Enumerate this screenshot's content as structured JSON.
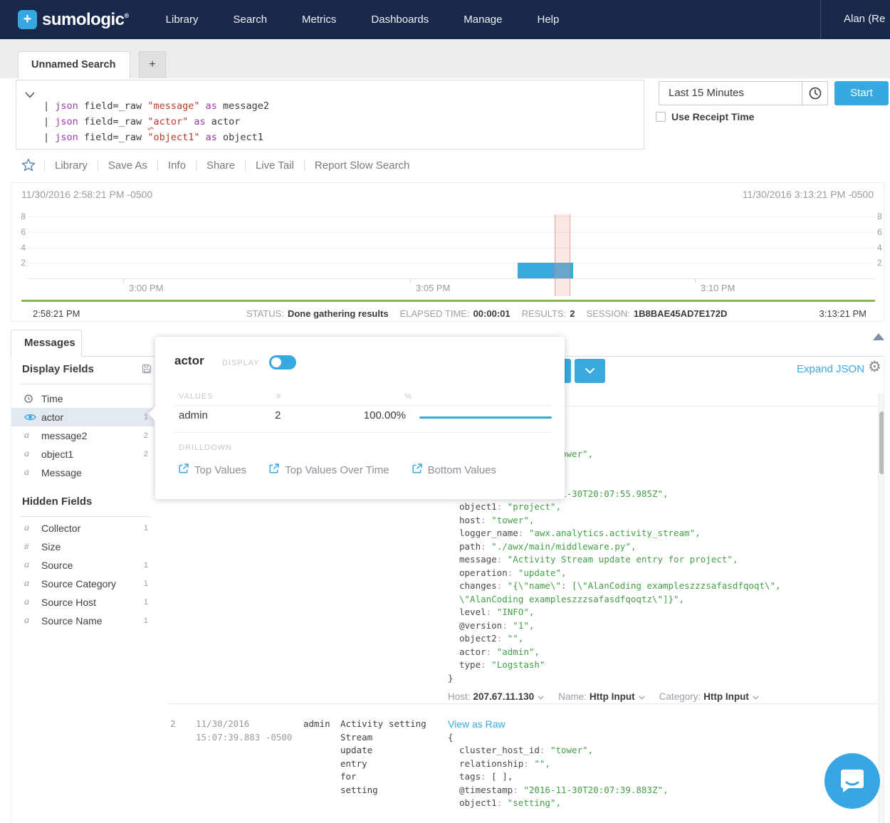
{
  "nav": {
    "brand": "sumologic",
    "brand_plus": "+",
    "registered": "®",
    "items": [
      "Library",
      "Search",
      "Metrics",
      "Dashboards",
      "Manage",
      "Help"
    ],
    "user": "Alan (Re"
  },
  "tabs": {
    "active": "Unnamed Search",
    "new_tab": "+"
  },
  "query": {
    "lines": [
      {
        "pipe": "| ",
        "cmd": "json ",
        "field": "field=_raw ",
        "str": "\"message\"",
        "kw": " as ",
        "alias": "message2",
        "squiggle": false
      },
      {
        "pipe": "| ",
        "cmd": "json ",
        "field": "field=_raw ",
        "str": "\"actor\"",
        "kw": " as ",
        "alias": "actor",
        "squiggle": true
      },
      {
        "pipe": "| ",
        "cmd": "json ",
        "field": "field=_raw ",
        "str": "\"object1\"",
        "kw": " as ",
        "alias": "object1",
        "squiggle": false
      }
    ],
    "time_range": "Last 15 Minutes",
    "start_label": "Start",
    "receipt_label": "Use Receipt Time"
  },
  "toolbar": {
    "items": [
      "Library",
      "Save As",
      "Info",
      "Share",
      "Live Tail",
      "Report Slow Search"
    ]
  },
  "histogram": {
    "start_label": "11/30/2016 2:58:21 PM -0500",
    "end_label": "11/30/2016 3:13:21 PM -0500",
    "start_time": "2:58:21 PM",
    "end_time": "3:13:21 PM",
    "y_ticks": [
      "8",
      "6",
      "4",
      "2"
    ],
    "x_ticks": [
      "3:00 PM",
      "3:05 PM",
      "3:10 PM"
    ],
    "bar": {
      "value": 2,
      "color": "#3aa9dc"
    },
    "status": [
      {
        "label": "STATUS:",
        "value": "Done gathering results"
      },
      {
        "label": "ELAPSED TIME:",
        "value": "00:00:01"
      },
      {
        "label": "RESULTS:",
        "value": "2"
      },
      {
        "label": "SESSION:",
        "value": "1B8BAE45AD7E172D"
      }
    ]
  },
  "messages": {
    "tab": "Messages",
    "expand_json": "Expand JSON",
    "display_fields": {
      "title": "Display Fields",
      "items": [
        {
          "icon": "clock",
          "label": "Time",
          "count": "",
          "selected": false
        },
        {
          "icon": "eye",
          "label": "actor",
          "count": "1",
          "selected": true
        },
        {
          "icon": "a",
          "label": "message2",
          "count": "2",
          "selected": false
        },
        {
          "icon": "a",
          "label": "object1",
          "count": "2",
          "selected": false
        },
        {
          "icon": "a",
          "label": "Message",
          "count": "",
          "selected": false
        }
      ]
    },
    "hidden_fields": {
      "title": "Hidden Fields",
      "items": [
        {
          "icon": "a",
          "label": "Collector",
          "count": "1",
          "selected": false
        },
        {
          "icon": "hash",
          "label": "Size",
          "count": "",
          "selected": false
        },
        {
          "icon": "a",
          "label": "Source",
          "count": "1",
          "selected": false
        },
        {
          "icon": "a",
          "label": "Source Category",
          "count": "1",
          "selected": false
        },
        {
          "icon": "a",
          "label": "Source Host",
          "count": "1",
          "selected": false
        },
        {
          "icon": "a",
          "label": "Source Name",
          "count": "1",
          "selected": false
        }
      ]
    },
    "rows": [
      {
        "view_raw": "View as Raw",
        "json": [
          {
            "k": "",
            "v": "{",
            "t": "brace"
          },
          {
            "k": "cluster_host_id",
            "v": "\"tower\",",
            "t": "str"
          },
          {
            "k": "relationship",
            "v": "\"\",",
            "t": "str"
          },
          {
            "k": "tags",
            "v": "[ ],",
            "t": "plain"
          },
          {
            "k": "@timestamp",
            "v": "\"2016-11-30T20:07:55.985Z\",",
            "t": "str"
          },
          {
            "k": "object1",
            "v": "\"project\",",
            "t": "str"
          },
          {
            "k": "host",
            "v": "\"tower\",",
            "t": "str"
          },
          {
            "k": "logger_name",
            "v": "\"awx.analytics.activity_stream\",",
            "t": "str"
          },
          {
            "k": "path",
            "v": "\"./awx/main/middleware.py\",",
            "t": "str"
          },
          {
            "k": "message",
            "v": "\"Activity Stream update entry for project\",",
            "t": "str"
          },
          {
            "k": "operation",
            "v": "\"update\",",
            "t": "str"
          },
          {
            "k": "changes",
            "v": "\"{\\\"name\\\": [\\\"AlanCoding exampleszzzsafasdfqoqt\\\",",
            "t": "str"
          },
          {
            "k": "",
            "v": "\\\"AlanCoding exampleszzzsafasdfqoqtz\\\"]}\",",
            "t": "str"
          },
          {
            "k": "level",
            "v": "\"INFO\",",
            "t": "str"
          },
          {
            "k": "@version",
            "v": "\"1\",",
            "t": "str"
          },
          {
            "k": "object2",
            "v": "\"\",",
            "t": "str"
          },
          {
            "k": "actor",
            "v": "\"admin\",",
            "t": "str"
          },
          {
            "k": "type",
            "v": "\"Logstash\"",
            "t": "str"
          },
          {
            "k": "",
            "v": "}",
            "t": "brace"
          }
        ],
        "footer": [
          {
            "label": "Host:",
            "value": "207.67.11.130"
          },
          {
            "label": "Name:",
            "value": "Http Input"
          },
          {
            "label": "Category:",
            "value": "Http Input"
          }
        ]
      },
      {
        "index": "2",
        "time": [
          "11/30/2016",
          "15:07:39.883 -0500"
        ],
        "actor": "admin",
        "message2": [
          "Activity",
          "Stream",
          "update",
          "entry",
          "for",
          "setting"
        ],
        "object1": "setting",
        "view_raw": "View as Raw",
        "json": [
          {
            "k": "",
            "v": "{",
            "t": "brace"
          },
          {
            "k": "cluster_host_id",
            "v": "\"tower\",",
            "t": "str"
          },
          {
            "k": "relationship",
            "v": "\"\",",
            "t": "str"
          },
          {
            "k": "tags",
            "v": "[ ],",
            "t": "plain"
          },
          {
            "k": "@timestamp",
            "v": "\"2016-11-30T20:07:39.883Z\",",
            "t": "str"
          },
          {
            "k": "object1",
            "v": "\"setting\",",
            "t": "str"
          }
        ]
      }
    ]
  },
  "popover": {
    "title": "actor",
    "display_label": "DISPLAY",
    "values_header": {
      "values": "VALUES",
      "count": "#",
      "pct": "%"
    },
    "rows": [
      {
        "value": "admin",
        "count": "2",
        "pct": "100.00%",
        "bar_pct": 100
      }
    ],
    "drilldown_label": "DRILLDOWN",
    "links": [
      "Top Values",
      "Top Values Over Time",
      "Bottom Values"
    ]
  },
  "colors": {
    "accent": "#36a9e1",
    "navy": "#18294b",
    "green": "#43a047",
    "bar_blue": "#3aa9dc",
    "timeline_green": "#7ec142"
  }
}
